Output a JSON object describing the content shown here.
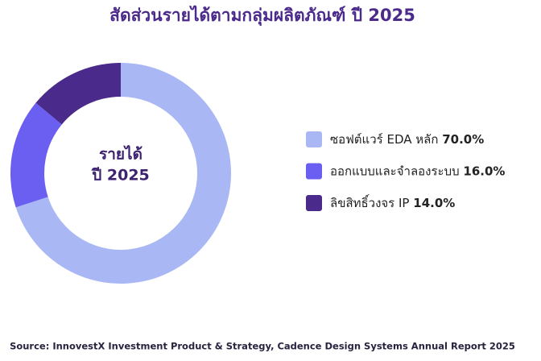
{
  "chart_data": {
    "type": "donut",
    "title": "สัดส่วนรายได้ตามกลุ่มผลิตภัณฑ์ ปี 2025",
    "center_label": [
      "รายได้",
      "ปี 2025"
    ],
    "categories": [
      "ซอฟต์แวร์ EDA หลัก",
      "ออกแบบและจำลองระบบ",
      "ลิขสิทธิ์วงจร IP"
    ],
    "values": [
      70,
      16,
      14
    ],
    "value_labels": [
      "70.0%",
      "16.0%",
      "14.0%"
    ],
    "colors": [
      "#a9b8f5",
      "#6a5ff0",
      "#4a2a8a"
    ],
    "source": "Source: InnovestX Investment Product & Strategy, Cadence Design Systems Annual Report 2025"
  }
}
